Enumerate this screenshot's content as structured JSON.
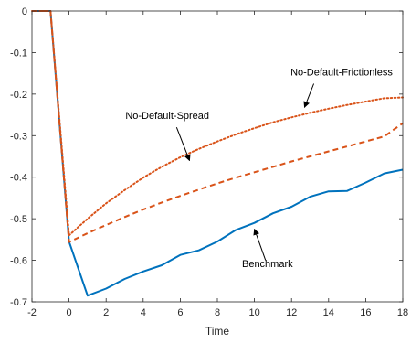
{
  "chart_data": {
    "type": "line",
    "title": "",
    "xlabel": "Time",
    "ylabel": "",
    "xlim": [
      -2,
      18
    ],
    "ylim": [
      -0.7,
      0
    ],
    "grid": false,
    "xticks": [
      -2,
      0,
      2,
      4,
      6,
      8,
      10,
      12,
      14,
      16,
      18
    ],
    "xtick_labels": [
      "-2",
      "0",
      "2",
      "4",
      "6",
      "8",
      "10",
      "12",
      "14",
      "16",
      "18"
    ],
    "yticks": [
      0,
      -0.1,
      -0.2,
      -0.3,
      -0.4,
      -0.5,
      -0.6,
      -0.7
    ],
    "ytick_labels": [
      "0",
      "-0.1",
      "-0.2",
      "-0.3",
      "-0.4",
      "-0.5",
      "-0.6",
      "-0.7"
    ],
    "series": [
      {
        "color": "#0072bd",
        "style": "solid",
        "x": [
          -2,
          -1,
          0,
          1,
          2,
          3,
          4,
          5,
          6,
          7,
          8,
          9,
          10,
          11,
          12,
          13,
          14,
          15,
          16,
          17,
          18
        ],
        "y": [
          0,
          0,
          -0.555,
          -0.685,
          -0.668,
          -0.645,
          -0.627,
          -0.612,
          -0.587,
          -0.576,
          -0.555,
          -0.527,
          -0.51,
          -0.487,
          -0.471,
          -0.447,
          -0.434,
          -0.433,
          -0.413,
          -0.391,
          -0.382
        ]
      },
      {
        "color": "#d95319",
        "style": "dashed",
        "x": [
          -2,
          -1,
          0,
          1,
          2,
          3,
          4,
          5,
          6,
          7,
          8,
          9,
          10,
          11,
          12,
          13,
          14,
          15,
          16,
          17,
          18
        ],
        "y": [
          0,
          0,
          -0.556,
          -0.535,
          -0.515,
          -0.496,
          -0.478,
          -0.461,
          -0.445,
          -0.43,
          -0.415,
          -0.401,
          -0.388,
          -0.375,
          -0.362,
          -0.35,
          -0.338,
          -0.326,
          -0.314,
          -0.302,
          -0.27
        ]
      },
      {
        "color": "#d95319",
        "style": "dotted",
        "x": [
          -2,
          -1,
          0,
          1,
          2,
          3,
          4,
          5,
          6,
          7,
          8,
          9,
          10,
          11,
          12,
          13,
          14,
          15,
          16,
          17,
          18
        ],
        "y": [
          0,
          0,
          -0.54,
          -0.5,
          -0.463,
          -0.431,
          -0.401,
          -0.375,
          -0.352,
          -0.332,
          -0.314,
          -0.297,
          -0.282,
          -0.268,
          -0.256,
          -0.245,
          -0.235,
          -0.226,
          -0.218,
          -0.21,
          -0.208
        ]
      }
    ],
    "annotations": [
      {
        "text": "No-Default-Frictionless",
        "label_x": 14.7,
        "label_y": -0.155,
        "arrow_from": [
          13.2,
          -0.175
        ],
        "arrow_to": [
          12.7,
          -0.232
        ]
      },
      {
        "text": "No-Default-Spread",
        "label_x": 5.3,
        "label_y": -0.26,
        "arrow_from": [
          5.8,
          -0.28
        ],
        "arrow_to": [
          6.5,
          -0.36
        ]
      },
      {
        "text": "Benchmark",
        "label_x": 10.7,
        "label_y": -0.616,
        "arrow_from": [
          10.6,
          -0.6
        ],
        "arrow_to": [
          10.0,
          -0.525
        ]
      }
    ]
  }
}
